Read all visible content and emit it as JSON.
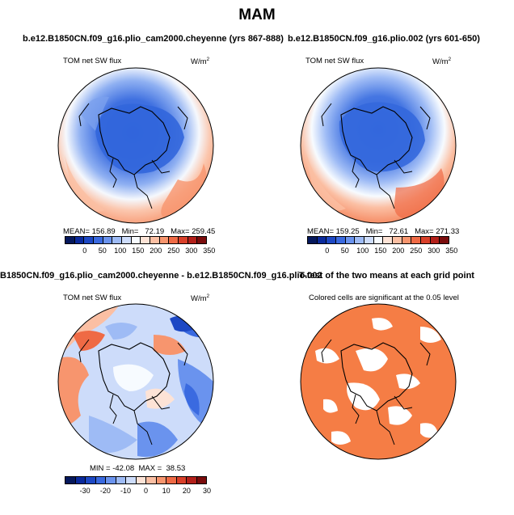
{
  "figure": {
    "title": "MAM"
  },
  "panels": [
    {
      "title": "b.e12.B1850CN.f09_g16.plio_cam2000.cheyenne (yrs 867-888)",
      "variable": "TOM net SW flux",
      "units_base": "W/m",
      "units_exp": "2",
      "stats": "MEAN= 156.89   Min=   72.19   Max= 259.45",
      "colorbar_ticks": [
        "0",
        "50",
        "100",
        "150",
        "200",
        "250",
        "300",
        "350"
      ]
    },
    {
      "title": "b.e12.B1850CN.f09_g16.plio.002 (yrs 601-650)",
      "variable": "TOM net SW flux",
      "units_base": "W/m",
      "units_exp": "2",
      "stats": "MEAN= 159.25   Min=   72.61   Max= 271.33",
      "colorbar_ticks": [
        "0",
        "50",
        "100",
        "150",
        "200",
        "250",
        "300",
        "350"
      ]
    },
    {
      "title": "B1850CN.f09_g16.plio_cam2000.cheyenne - b.e12.B1850CN.f09_g16.plio.002",
      "variable": "TOM net SW flux",
      "units_base": "W/m",
      "units_exp": "2",
      "stats": "MIN = -42.08  MAX =  38.53",
      "colorbar_ticks": [
        "-30",
        "-20",
        "-10",
        "0",
        "10",
        "20",
        "30"
      ]
    },
    {
      "title": "T-test of the two means at each grid point",
      "note": "Colored cells are significant at the 0.05 level"
    }
  ],
  "colors": {
    "abs_scale": [
      "#05185c",
      "#0a2a9c",
      "#1d48c4",
      "#3a6ae0",
      "#6a93ee",
      "#9ebbf5",
      "#cddcfa",
      "#f7fbff",
      "#fde3d6",
      "#fbbfa3",
      "#f7956e",
      "#ef6a45",
      "#d9402a",
      "#b3201a",
      "#7a0c0c"
    ],
    "diff_scale": [
      "#05185c",
      "#0a2a9c",
      "#1d48c4",
      "#3a6ae0",
      "#6a93ee",
      "#9ebbf5",
      "#cddcfa",
      "#fde3d6",
      "#fbbfa3",
      "#f7956e",
      "#ef6a45",
      "#d9402a",
      "#b3201a",
      "#7a0c0c"
    ],
    "significant": "#f57d45"
  }
}
